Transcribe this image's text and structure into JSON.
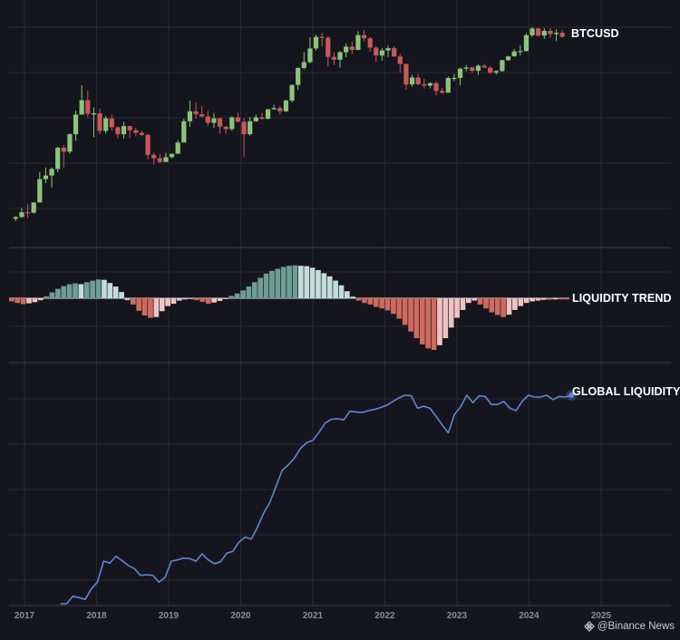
{
  "chart_data": [
    {
      "type": "candlestick",
      "series_label": "BTCUSD",
      "interval": "monthly",
      "scale": "log",
      "x_start": "2017-01",
      "candles": [
        [
          0.93,
          0.97,
          0.88,
          0.99
        ],
        [
          0.97,
          1.08,
          0.95,
          1.2
        ],
        [
          1.08,
          1.07,
          0.95,
          1.3
        ],
        [
          1.07,
          1.35,
          1.05,
          1.35
        ],
        [
          1.35,
          2.3,
          1.35,
          2.7
        ],
        [
          2.3,
          2.5,
          2.1,
          3.0
        ],
        [
          2.5,
          2.9,
          1.9,
          3.0
        ],
        [
          2.9,
          4.7,
          2.7,
          4.8
        ],
        [
          4.7,
          4.3,
          3.0,
          5.0
        ],
        [
          4.3,
          6.4,
          4.1,
          6.5
        ],
        [
          6.4,
          10.0,
          5.5,
          11.0
        ],
        [
          10.0,
          13.9,
          10.0,
          19.5
        ],
        [
          13.9,
          10.2,
          9.4,
          17.2
        ],
        [
          10.2,
          10.3,
          6.0,
          11.8
        ],
        [
          10.3,
          6.9,
          6.4,
          11.5
        ],
        [
          6.9,
          9.2,
          6.5,
          9.7
        ],
        [
          9.2,
          7.5,
          7.0,
          10.0
        ],
        [
          7.5,
          6.4,
          5.8,
          7.7
        ],
        [
          6.4,
          7.7,
          5.8,
          8.5
        ],
        [
          7.7,
          7.0,
          5.9,
          7.7
        ],
        [
          7.0,
          6.6,
          6.1,
          7.4
        ],
        [
          6.6,
          6.3,
          6.1,
          6.9
        ],
        [
          6.3,
          4.0,
          3.6,
          6.5
        ],
        [
          4.0,
          3.7,
          3.2,
          4.2
        ],
        [
          3.7,
          3.4,
          3.3,
          4.1
        ],
        [
          3.4,
          3.8,
          3.4,
          4.2
        ],
        [
          3.8,
          4.1,
          3.7,
          4.1
        ],
        [
          4.1,
          5.3,
          4.1,
          5.6
        ],
        [
          5.3,
          8.6,
          5.3,
          9.1
        ],
        [
          8.6,
          10.8,
          7.6,
          13.8
        ],
        [
          10.8,
          10.1,
          9.1,
          13.2
        ],
        [
          10.1,
          9.6,
          9.3,
          12.2
        ],
        [
          9.6,
          8.3,
          7.7,
          10.9
        ],
        [
          8.3,
          9.2,
          7.4,
          10.4
        ],
        [
          9.2,
          7.6,
          6.5,
          9.3
        ],
        [
          7.6,
          7.2,
          6.5,
          7.7
        ],
        [
          7.2,
          9.4,
          6.9,
          9.6
        ],
        [
          9.4,
          8.5,
          8.4,
          10.5
        ],
        [
          8.5,
          6.4,
          3.8,
          9.2
        ],
        [
          6.4,
          8.6,
          6.2,
          9.5
        ],
        [
          8.6,
          9.4,
          8.5,
          10.0
        ],
        [
          9.4,
          9.1,
          8.9,
          10.4
        ],
        [
          9.1,
          11.3,
          9.0,
          11.4
        ],
        [
          11.3,
          11.6,
          11.2,
          12.5
        ],
        [
          11.6,
          10.8,
          10.0,
          12.1
        ],
        [
          10.8,
          13.8,
          10.6,
          14.0
        ],
        [
          13.8,
          19.7,
          13.2,
          19.9
        ],
        [
          19.7,
          29.0,
          17.6,
          29.3
        ],
        [
          29.0,
          33.1,
          28.1,
          41.9
        ],
        [
          33.1,
          45.2,
          32.3,
          58.3
        ],
        [
          45.2,
          58.8,
          43.0,
          61.7
        ],
        [
          58.8,
          57.7,
          47.0,
          64.8
        ],
        [
          57.7,
          37.3,
          30.0,
          59.5
        ],
        [
          37.3,
          35.0,
          31.0,
          41.3
        ],
        [
          35.0,
          41.5,
          29.3,
          42.5
        ],
        [
          41.5,
          47.1,
          37.0,
          50.5
        ],
        [
          47.1,
          43.8,
          39.6,
          52.9
        ],
        [
          43.8,
          61.3,
          43.3,
          66.9
        ],
        [
          61.3,
          57.0,
          53.0,
          69.0
        ],
        [
          57.0,
          46.2,
          42.0,
          59.0
        ],
        [
          46.2,
          38.5,
          33.0,
          48.0
        ],
        [
          38.5,
          43.2,
          34.3,
          45.8
        ],
        [
          43.2,
          45.5,
          37.2,
          48.2
        ],
        [
          45.5,
          37.6,
          37.4,
          47.5
        ],
        [
          37.6,
          31.8,
          26.0,
          39.9
        ],
        [
          31.8,
          19.9,
          17.6,
          31.9
        ],
        [
          19.9,
          23.3,
          18.9,
          24.7
        ],
        [
          23.3,
          20.0,
          19.6,
          25.2
        ],
        [
          20.0,
          19.4,
          18.2,
          22.8
        ],
        [
          19.4,
          20.5,
          18.2,
          20.9
        ],
        [
          20.5,
          17.2,
          15.5,
          21.4
        ],
        [
          17.2,
          16.5,
          16.0,
          18.4
        ],
        [
          16.5,
          23.1,
          16.5,
          23.9
        ],
        [
          23.1,
          23.1,
          21.4,
          25.3
        ],
        [
          23.1,
          28.5,
          19.5,
          29.2
        ],
        [
          28.5,
          29.3,
          26.9,
          31.0
        ],
        [
          29.3,
          27.2,
          25.8,
          29.9
        ],
        [
          27.2,
          30.5,
          24.8,
          31.4
        ],
        [
          30.5,
          29.2,
          28.9,
          31.8
        ],
        [
          29.2,
          26.0,
          25.3,
          30.2
        ],
        [
          26.0,
          27.0,
          24.9,
          27.5
        ],
        [
          27.0,
          34.6,
          26.6,
          35.0
        ],
        [
          34.6,
          37.7,
          34.1,
          38.4
        ],
        [
          37.7,
          42.3,
          37.6,
          44.7
        ],
        [
          42.3,
          42.6,
          38.6,
          48.9
        ],
        [
          42.6,
          61.1,
          41.9,
          64.0
        ],
        [
          61.1,
          71.3,
          59.0,
          73.8
        ],
        [
          71.3,
          60.6,
          59.1,
          72.7
        ],
        [
          60.6,
          67.5,
          56.5,
          71.9
        ],
        [
          67.5,
          62.7,
          58.0,
          71.9
        ],
        [
          62.7,
          64.6,
          53.5,
          70.0
        ],
        [
          64.6,
          59.0,
          58.2,
          68.2
        ]
      ]
    },
    {
      "type": "bar",
      "series_label": "LIQUIDITY TREND",
      "baseline": 0,
      "values": [
        -0.8,
        -1.2,
        -1.5,
        -1.3,
        -1.0,
        -0.5,
        0.5,
        1.5,
        2.4,
        3.1,
        3.6,
        3.8,
        3.6,
        4.1,
        4.5,
        4.8,
        4.7,
        3.9,
        3.0,
        1.6,
        -0.5,
        -1.6,
        -3.2,
        -4.4,
        -5.0,
        -4.8,
        -3.3,
        -2.0,
        -1.4,
        -0.6,
        -0.3,
        -0.2,
        -0.5,
        -0.9,
        -1.4,
        -1.1,
        -0.7,
        -0.2,
        0.6,
        1.2,
        2.0,
        3.0,
        4.1,
        5.2,
        6.3,
        7.0,
        7.5,
        8.0,
        8.3,
        8.4,
        8.3,
        8.2,
        7.8,
        7.2,
        6.4,
        5.6,
        4.5,
        3.3,
        1.8,
        0.4,
        -0.6,
        -1.2,
        -1.6,
        -2.2,
        -2.6,
        -3.1,
        -4.0,
        -5.2,
        -6.8,
        -8.5,
        -10.2,
        -11.8,
        -12.8,
        -13.2,
        -12.0,
        -10.2,
        -7.5,
        -5.0,
        -3.0,
        -1.2,
        -0.6,
        -1.6,
        -2.6,
        -3.6,
        -4.3,
        -4.8,
        -4.2,
        -3.0,
        -2.0,
        -1.2,
        -0.8,
        -0.6,
        -0.4,
        -0.4,
        -0.3,
        -0.3,
        -0.3
      ]
    },
    {
      "type": "line",
      "series_label": "GLOBAL LIQUIDITY",
      "x_start": 2017.5,
      "x_end": 2024.5,
      "values": [
        0.0,
        0.0,
        1.2,
        1.0,
        0.7,
        2.4,
        3.5,
        6.9,
        6.6,
        7.7,
        7.0,
        6.2,
        5.7,
        4.6,
        4.7,
        4.6,
        3.5,
        4.3,
        6.9,
        7.1,
        7.4,
        7.3,
        6.9,
        8.1,
        7.1,
        6.5,
        6.8,
        8.2,
        8.5,
        10.0,
        10.8,
        10.5,
        12.4,
        14.7,
        16.4,
        19.0,
        21.6,
        22.5,
        23.6,
        25.2,
        26.1,
        26.5,
        27.8,
        29.3,
        29.9,
        30.0,
        29.8,
        31.2,
        31.1,
        31.0,
        31.3,
        31.5,
        31.8,
        32.2,
        32.8,
        33.4,
        33.8,
        33.7,
        31.7,
        32.0,
        31.7,
        30.4,
        29.0,
        27.7,
        30.7,
        31.9,
        33.8,
        32.6,
        33.7,
        33.6,
        32.3,
        32.3,
        32.8,
        31.7,
        31.3,
        32.8,
        33.8,
        33.5,
        33.5,
        33.8,
        33.1,
        33.6,
        33.5,
        33.8
      ]
    }
  ],
  "x_axis": {
    "labels": [
      "2017",
      "2018",
      "2019",
      "2020",
      "2021",
      "2022",
      "2023",
      "2024",
      "2025"
    ]
  },
  "colors": {
    "background": "#15161d",
    "candle_up": "#8bc47a",
    "candle_down": "#c8585b",
    "trend_pos_strong": "#6f9e92",
    "trend_pos_light": "#c3ddd8",
    "trend_neg_strong": "#cf6a5f",
    "trend_neg_light": "#efc4c4",
    "liquidity_line": "#5f86d9",
    "grid": "#262833",
    "separator": "#3a3c47",
    "axis_text": "#8b8e97"
  },
  "watermark": {
    "icon": "binance-diamond-icon",
    "text": "@Binance News"
  }
}
